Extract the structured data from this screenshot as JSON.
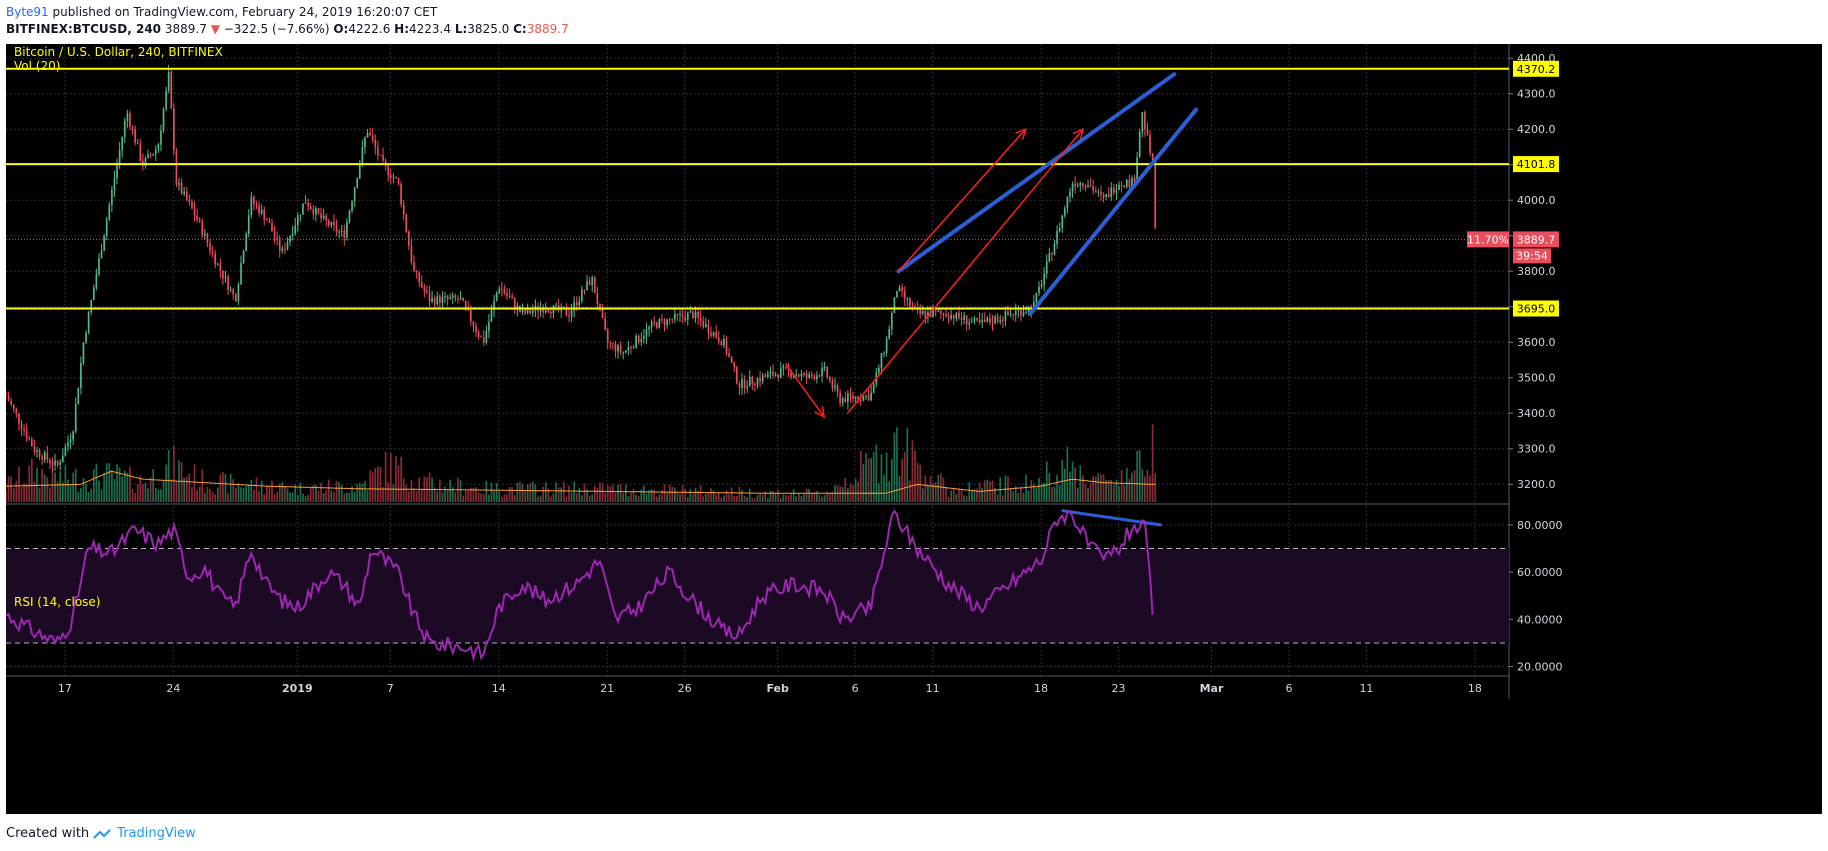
{
  "header": {
    "author": "Byte91",
    "published": "published on TradingView.com, February 24, 2019 16:20:07 CET",
    "symbol": "BITFINEX:BTCUSD, 240",
    "last": "3889.7",
    "arrow": "▼",
    "change": "−322.5 (−7.66%)",
    "o_label": "O:",
    "o": "4222.6",
    "h_label": "H:",
    "h": "4223.4",
    "l_label": "L:",
    "l": "3825.0",
    "c_label": "C:",
    "c": "3889.7"
  },
  "pane": {
    "title": "Bitcoin / U.S. Dollar, 240, BITFINEX",
    "vol_label": "Vol (20)",
    "rsi_label": "RSI (14, close)"
  },
  "footer": {
    "created": "Created with",
    "brand": "TradingView"
  },
  "colors": {
    "background": "#000000",
    "up": "#53b987",
    "down": "#eb4d5c",
    "level": "#ffff00",
    "trendline": "#2a5fd6",
    "arrow": "#ff1f1f",
    "rsi": "#9c27b0",
    "rsi_band": "#1c0a24",
    "vol_ma": "#ff9d3b"
  },
  "chart_data": [
    {
      "type": "candlestick",
      "title": "Bitcoin / U.S. Dollar, 240, BITFINEX",
      "ylim": [
        3150,
        4440
      ],
      "yticks": [
        4400,
        4300,
        4200,
        4100,
        4000,
        3900,
        3800,
        3700,
        3600,
        3500,
        3400,
        3300,
        3200
      ],
      "xticks": [
        "17",
        "24",
        "2019",
        "7",
        "14",
        "21",
        "26",
        "Feb",
        "6",
        "11",
        "18",
        "23",
        "Mar",
        "6",
        "11",
        "18"
      ],
      "xtick_days": [
        -15,
        -8,
        0,
        6,
        13,
        20,
        25,
        31,
        36,
        41,
        48,
        53,
        59,
        64,
        69,
        76
      ],
      "x_unit": "days from 2019-01-01",
      "xlim": [
        -18.8,
        78.2
      ],
      "price_path": [
        [
          -18.8,
          3450
        ],
        [
          -17,
          3300
        ],
        [
          -15.5,
          3250
        ],
        [
          -14.5,
          3350
        ],
        [
          -13.8,
          3600
        ],
        [
          -12.5,
          3900
        ],
        [
          -11,
          4250
        ],
        [
          -10,
          4100
        ],
        [
          -9,
          4150
        ],
        [
          -8.3,
          4350
        ],
        [
          -7.8,
          4050
        ],
        [
          -6.5,
          3950
        ],
        [
          -5.5,
          3850
        ],
        [
          -4,
          3720
        ],
        [
          -3,
          4000
        ],
        [
          -2,
          3950
        ],
        [
          -1,
          3850
        ],
        [
          0.5,
          4000
        ],
        [
          1.5,
          3950
        ],
        [
          3,
          3900
        ],
        [
          4.5,
          4200
        ],
        [
          5.5,
          4100
        ],
        [
          6.5,
          4050
        ],
        [
          7.5,
          3800
        ],
        [
          8.5,
          3720
        ],
        [
          10.5,
          3720
        ],
        [
          12,
          3600
        ],
        [
          13,
          3760
        ],
        [
          14.5,
          3680
        ],
        [
          16,
          3700
        ],
        [
          17.5,
          3680
        ],
        [
          19,
          3780
        ],
        [
          20,
          3600
        ],
        [
          21,
          3570
        ],
        [
          23,
          3650
        ],
        [
          25.5,
          3680
        ],
        [
          27.5,
          3600
        ],
        [
          28.5,
          3480
        ],
        [
          30,
          3500
        ],
        [
          31.5,
          3520
        ],
        [
          33,
          3500
        ],
        [
          34,
          3520
        ],
        [
          35,
          3440
        ],
        [
          37,
          3450
        ],
        [
          38,
          3600
        ],
        [
          38.7,
          3750
        ],
        [
          40,
          3680
        ],
        [
          42,
          3680
        ],
        [
          44,
          3650
        ],
        [
          47.5,
          3700
        ],
        [
          49,
          3900
        ],
        [
          50,
          4050
        ],
        [
          51,
          4050
        ],
        [
          52,
          4000
        ],
        [
          53,
          4050
        ],
        [
          54,
          4050
        ],
        [
          54.5,
          4250
        ],
        [
          55.2,
          4100
        ],
        [
          55.4,
          3890
        ]
      ],
      "last_price": 3889.7,
      "levels": [
        {
          "price": 4370.2,
          "label": "4370.2"
        },
        {
          "price": 4101.8,
          "label": "4101.8"
        },
        {
          "price": 3695.0,
          "label": "3695.0"
        }
      ],
      "last_label": "3889.7",
      "countdown": "39:54",
      "pct_label": "11.70%",
      "trendlines": [
        {
          "from": [
            38.8,
            3800
          ],
          "to": [
            56.6,
            4355
          ]
        },
        {
          "from": [
            47.3,
            3680
          ],
          "to": [
            58.0,
            4255
          ]
        }
      ],
      "arrows": [
        {
          "from": [
            38.8,
            3800
          ],
          "to": [
            47.0,
            4200
          ]
        },
        {
          "from": [
            35.5,
            3400
          ],
          "to": [
            50.7,
            4200
          ]
        },
        {
          "from": [
            31.5,
            3540
          ],
          "to": [
            34.0,
            3390
          ]
        }
      ]
    },
    {
      "type": "bar",
      "name": "Vol (20)",
      "values_shape": [
        [
          -18.8,
          0.25
        ],
        [
          -17,
          0.45
        ],
        [
          -15,
          0.35
        ],
        [
          -12,
          0.4
        ],
        [
          -10,
          0.3
        ],
        [
          -8,
          0.55
        ],
        [
          -6,
          0.3
        ],
        [
          -2,
          0.25
        ],
        [
          0,
          0.2
        ],
        [
          4,
          0.25
        ],
        [
          6,
          0.55
        ],
        [
          8,
          0.3
        ],
        [
          12,
          0.2
        ],
        [
          20,
          0.2
        ],
        [
          28,
          0.15
        ],
        [
          34,
          0.12
        ],
        [
          38.7,
          0.85
        ],
        [
          42,
          0.18
        ],
        [
          48,
          0.3
        ],
        [
          49,
          0.6
        ],
        [
          52,
          0.3
        ],
        [
          54.5,
          0.55
        ],
        [
          55.3,
          1.0
        ]
      ],
      "ma_shape": [
        [
          -18.8,
          0.18
        ],
        [
          -14,
          0.2
        ],
        [
          -12,
          0.35
        ],
        [
          -10,
          0.26
        ],
        [
          -6,
          0.22
        ],
        [
          -2,
          0.18
        ],
        [
          4,
          0.15
        ],
        [
          10,
          0.14
        ],
        [
          20,
          0.12
        ],
        [
          30,
          0.1
        ],
        [
          38,
          0.1
        ],
        [
          40,
          0.2
        ],
        [
          44,
          0.12
        ],
        [
          48,
          0.18
        ],
        [
          50,
          0.26
        ],
        [
          52,
          0.22
        ],
        [
          55.3,
          0.2
        ]
      ]
    },
    {
      "type": "line",
      "name": "RSI (14, close)",
      "ylim": [
        16,
        88
      ],
      "yticks": [
        80,
        60,
        40,
        20
      ],
      "ytick_labels": [
        "80.0000",
        "60.0000",
        "40.0000",
        "20.0000"
      ],
      "bands": [
        70,
        30
      ],
      "values": [
        [
          -18.8,
          42
        ],
        [
          -17,
          35
        ],
        [
          -15.5,
          30
        ],
        [
          -14.5,
          40
        ],
        [
          -13.5,
          70
        ],
        [
          -12,
          68
        ],
        [
          -10.5,
          78
        ],
        [
          -9,
          72
        ],
        [
          -8,
          78
        ],
        [
          -7,
          58
        ],
        [
          -6,
          62
        ],
        [
          -5,
          50
        ],
        [
          -4,
          45
        ],
        [
          -3,
          70
        ],
        [
          -2,
          55
        ],
        [
          -1,
          48
        ],
        [
          0,
          45
        ],
        [
          2,
          60
        ],
        [
          3,
          55
        ],
        [
          4,
          45
        ],
        [
          4.8,
          70
        ],
        [
          6.5,
          60
        ],
        [
          7.5,
          42
        ],
        [
          8.5,
          30
        ],
        [
          11,
          28
        ],
        [
          12,
          25
        ],
        [
          13,
          45
        ],
        [
          14.5,
          55
        ],
        [
          16,
          48
        ],
        [
          18,
          55
        ],
        [
          19.5,
          65
        ],
        [
          20.5,
          40
        ],
        [
          22,
          45
        ],
        [
          24,
          60
        ],
        [
          25.5,
          48
        ],
        [
          27.5,
          35
        ],
        [
          28.5,
          33
        ],
        [
          30,
          50
        ],
        [
          32,
          55
        ],
        [
          34,
          52
        ],
        [
          35.2,
          40
        ],
        [
          37,
          45
        ],
        [
          38.5,
          85
        ],
        [
          40,
          70
        ],
        [
          42,
          55
        ],
        [
          44,
          45
        ],
        [
          46,
          55
        ],
        [
          48,
          65
        ],
        [
          49,
          83
        ],
        [
          50,
          85
        ],
        [
          51,
          72
        ],
        [
          52,
          65
        ],
        [
          53,
          70
        ],
        [
          54,
          80
        ],
        [
          54.7,
          78
        ],
        [
          55.3,
          38
        ]
      ],
      "divergence_line": {
        "from": [
          49.4,
          86
        ],
        "to": [
          55.7,
          80
        ]
      }
    }
  ]
}
